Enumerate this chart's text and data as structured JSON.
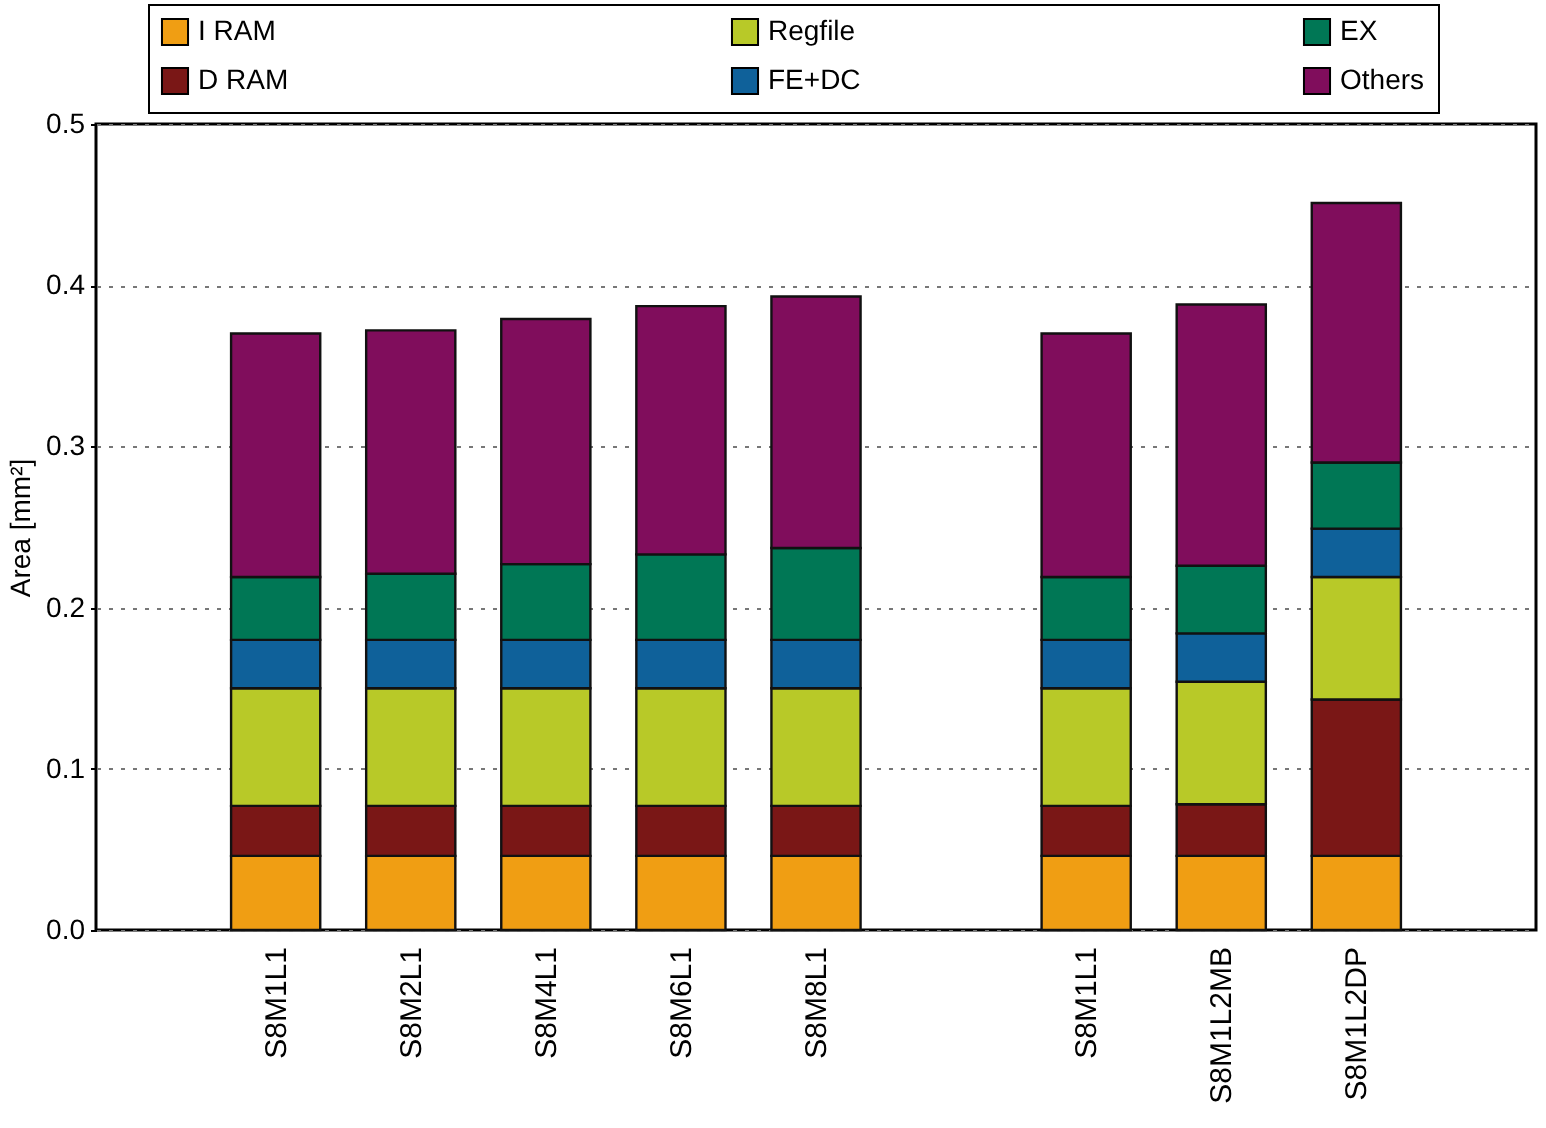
{
  "chart_data": {
    "type": "bar",
    "stacked": true,
    "ylabel": "Area [mm²]",
    "categories": [
      "S8M1L1",
      "S8M2L1",
      "S8M4L1",
      "S8M6L1",
      "S8M8L1",
      null,
      "S8M1L1",
      "S8M1L2MB",
      "S8M1L2DP"
    ],
    "series": [
      {
        "name": "I RAM",
        "color": "#f09e13",
        "values": [
          0.046,
          0.046,
          0.046,
          0.046,
          0.046,
          null,
          0.046,
          0.046,
          0.046
        ]
      },
      {
        "name": "D RAM",
        "color": "#7a1716",
        "values": [
          0.031,
          0.031,
          0.031,
          0.031,
          0.031,
          null,
          0.031,
          0.032,
          0.097
        ]
      },
      {
        "name": "Regfile",
        "color": "#b8c928",
        "values": [
          0.073,
          0.073,
          0.073,
          0.073,
          0.073,
          null,
          0.073,
          0.076,
          0.076
        ]
      },
      {
        "name": "FE+DC",
        "color": "#0f619a",
        "values": [
          0.03,
          0.03,
          0.03,
          0.03,
          0.03,
          null,
          0.03,
          0.03,
          0.03
        ]
      },
      {
        "name": "EX",
        "color": "#007755",
        "values": [
          0.039,
          0.041,
          0.047,
          0.053,
          0.057,
          null,
          0.039,
          0.042,
          0.041
        ]
      },
      {
        "name": "Others",
        "color": "#800d5c",
        "values": [
          0.151,
          0.151,
          0.152,
          0.154,
          0.156,
          null,
          0.151,
          0.162,
          0.161
        ]
      }
    ],
    "ylim": [
      0,
      0.5
    ],
    "yticks": [
      {
        "value": 0,
        "label": "0.0"
      },
      0.1,
      0.2,
      0.3,
      0.4,
      0.5
    ],
    "grid": "y",
    "legend": "top"
  }
}
